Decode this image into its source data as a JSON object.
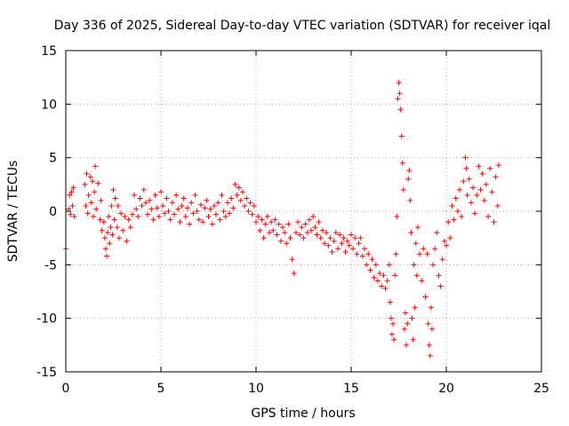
{
  "chart_data": {
    "type": "scatter",
    "title": "Day 336 of 2025, Sidereal Day-to-day VTEC variation (SDTVAR) for receiver iqal",
    "xlabel": "GPS time / hours",
    "ylabel": "SDTVAR / TECUs",
    "xlim": [
      0,
      25
    ],
    "ylim": [
      -15,
      15
    ],
    "xticks": [
      "0",
      "5",
      "10",
      "15",
      "20",
      "25"
    ],
    "yticks": [
      "-15",
      "-10",
      "-5",
      "0",
      "5",
      "10",
      "15"
    ],
    "grid": true,
    "marker": "+",
    "color": "#ff0000",
    "series": [
      {
        "name": "SDTVAR",
        "points": [
          [
            0.0,
            -3.5
          ],
          [
            0.15,
            0.2
          ],
          [
            0.2,
            1.5
          ],
          [
            0.25,
            -0.3
          ],
          [
            0.3,
            1.8
          ],
          [
            0.35,
            0.5
          ],
          [
            0.4,
            2.2
          ],
          [
            0.45,
            -0.5
          ],
          [
            1.0,
            2.5
          ],
          [
            1.05,
            0.5
          ],
          [
            1.1,
            3.5
          ],
          [
            1.15,
            -0.2
          ],
          [
            1.2,
            1.5
          ],
          [
            1.3,
            3.2
          ],
          [
            1.35,
            0.8
          ],
          [
            1.4,
            2.8
          ],
          [
            1.45,
            -0.5
          ],
          [
            1.5,
            1.8
          ],
          [
            1.55,
            4.2
          ],
          [
            1.6,
            0.2
          ],
          [
            1.7,
            2.6
          ],
          [
            1.8,
            -0.8
          ],
          [
            1.85,
            1.0
          ],
          [
            1.9,
            -1.8
          ],
          [
            2.0,
            -1.0
          ],
          [
            2.05,
            -2.5
          ],
          [
            2.1,
            -3.5
          ],
          [
            2.15,
            -4.2
          ],
          [
            2.2,
            -2.0
          ],
          [
            2.25,
            -0.5
          ],
          [
            2.3,
            -3.0
          ],
          [
            2.35,
            -1.5
          ],
          [
            2.4,
            0.5
          ],
          [
            2.45,
            -2.2
          ],
          [
            2.5,
            2.0
          ],
          [
            2.55,
            -0.8
          ],
          [
            2.6,
            1.2
          ],
          [
            2.7,
            -1.5
          ],
          [
            2.75,
            0.5
          ],
          [
            2.8,
            -2.5
          ],
          [
            2.9,
            -0.2
          ],
          [
            3.0,
            -1.8
          ],
          [
            3.1,
            -0.5
          ],
          [
            3.2,
            -2.8
          ],
          [
            3.3,
            -0.8
          ],
          [
            3.4,
            -1.5
          ],
          [
            3.5,
            -0.3
          ],
          [
            3.6,
            1.5
          ],
          [
            3.7,
            0.2
          ],
          [
            3.8,
            -0.5
          ],
          [
            3.9,
            1.2
          ],
          [
            4.0,
            0.5
          ],
          [
            4.1,
            2.0
          ],
          [
            4.2,
            0.8
          ],
          [
            4.3,
            -0.3
          ],
          [
            4.4,
            1.0
          ],
          [
            4.5,
            0.2
          ],
          [
            4.6,
            -0.8
          ],
          [
            4.7,
            1.5
          ],
          [
            4.8,
            0.3
          ],
          [
            4.9,
            -0.5
          ],
          [
            5.0,
            1.8
          ],
          [
            5.1,
            0.5
          ],
          [
            5.2,
            -0.2
          ],
          [
            5.3,
            1.2
          ],
          [
            5.4,
            0.0
          ],
          [
            5.5,
            -0.8
          ],
          [
            5.6,
            0.8
          ],
          [
            5.7,
            -0.3
          ],
          [
            5.8,
            1.5
          ],
          [
            5.9,
            0.2
          ],
          [
            6.0,
            -1.0
          ],
          [
            6.1,
            0.5
          ],
          [
            6.2,
            1.2
          ],
          [
            6.3,
            -0.5
          ],
          [
            6.4,
            0.3
          ],
          [
            6.5,
            -1.2
          ],
          [
            6.6,
            0.8
          ],
          [
            6.7,
            -0.2
          ],
          [
            6.8,
            1.5
          ],
          [
            6.9,
            0.0
          ],
          [
            7.0,
            -0.8
          ],
          [
            7.1,
            0.6
          ],
          [
            7.2,
            -1.0
          ],
          [
            7.3,
            0.3
          ],
          [
            7.4,
            1.0
          ],
          [
            7.5,
            -0.5
          ],
          [
            7.6,
            0.2
          ],
          [
            7.7,
            -1.2
          ],
          [
            7.8,
            0.5
          ],
          [
            7.9,
            -0.3
          ],
          [
            8.0,
            0.8
          ],
          [
            8.1,
            -0.8
          ],
          [
            8.2,
            1.5
          ],
          [
            8.3,
            0.0
          ],
          [
            8.4,
            -0.5
          ],
          [
            8.5,
            0.8
          ],
          [
            8.6,
            -0.2
          ],
          [
            8.7,
            1.2
          ],
          [
            8.8,
            0.3
          ],
          [
            8.9,
            2.5
          ],
          [
            9.0,
            1.5
          ],
          [
            9.1,
            2.2
          ],
          [
            9.2,
            1.0
          ],
          [
            9.3,
            1.8
          ],
          [
            9.4,
            0.5
          ],
          [
            9.5,
            1.2
          ],
          [
            9.6,
            0.0
          ],
          [
            9.7,
            0.8
          ],
          [
            9.8,
            -0.3
          ],
          [
            9.9,
            0.5
          ],
          [
            10.0,
            -1.0
          ],
          [
            10.1,
            -0.5
          ],
          [
            10.2,
            -1.8
          ],
          [
            10.3,
            -0.8
          ],
          [
            10.4,
            -2.5
          ],
          [
            10.5,
            -1.2
          ],
          [
            10.6,
            -0.5
          ],
          [
            10.7,
            -2.0
          ],
          [
            10.8,
            -1.0
          ],
          [
            10.9,
            -1.8
          ],
          [
            11.0,
            -0.8
          ],
          [
            11.1,
            -2.2
          ],
          [
            11.2,
            -1.2
          ],
          [
            11.3,
            -2.8
          ],
          [
            11.4,
            -1.5
          ],
          [
            11.5,
            -2.0
          ],
          [
            11.6,
            -3.0
          ],
          [
            11.7,
            -1.2
          ],
          [
            11.8,
            -2.5
          ],
          [
            11.9,
            -4.5
          ],
          [
            12.0,
            -5.8
          ],
          [
            12.1,
            -2.0
          ],
          [
            12.2,
            -1.0
          ],
          [
            12.3,
            -2.2
          ],
          [
            12.4,
            -1.5
          ],
          [
            12.5,
            -2.5
          ],
          [
            12.6,
            -1.2
          ],
          [
            12.7,
            -2.0
          ],
          [
            12.8,
            -0.8
          ],
          [
            12.9,
            -1.8
          ],
          [
            13.0,
            -0.5
          ],
          [
            13.1,
            -1.5
          ],
          [
            13.2,
            -2.2
          ],
          [
            13.3,
            -1.0
          ],
          [
            13.4,
            -2.5
          ],
          [
            13.5,
            -1.8
          ],
          [
            13.6,
            -3.0
          ],
          [
            13.7,
            -2.0
          ],
          [
            13.8,
            -3.2
          ],
          [
            13.9,
            -2.5
          ],
          [
            14.0,
            -3.8
          ],
          [
            14.1,
            -2.8
          ],
          [
            14.2,
            -2.0
          ],
          [
            14.3,
            -3.5
          ],
          [
            14.4,
            -2.2
          ],
          [
            14.5,
            -3.0
          ],
          [
            14.6,
            -2.5
          ],
          [
            14.7,
            -3.8
          ],
          [
            14.8,
            -2.8
          ],
          [
            14.9,
            -3.2
          ],
          [
            15.0,
            -2.2
          ],
          [
            15.1,
            -3.5
          ],
          [
            15.2,
            -2.5
          ],
          [
            15.3,
            -4.0
          ],
          [
            15.4,
            -3.0
          ],
          [
            15.5,
            -2.5
          ],
          [
            15.6,
            -4.2
          ],
          [
            15.7,
            -3.5
          ],
          [
            15.8,
            -5.0
          ],
          [
            15.9,
            -4.0
          ],
          [
            16.0,
            -5.5
          ],
          [
            16.1,
            -4.5
          ],
          [
            16.2,
            -6.2
          ],
          [
            16.3,
            -5.0
          ],
          [
            16.4,
            -6.5
          ],
          [
            16.5,
            -5.8
          ],
          [
            16.6,
            -7.0
          ],
          [
            16.7,
            -6.0
          ],
          [
            16.8,
            -7.2
          ],
          [
            16.9,
            -6.5
          ],
          [
            17.0,
            -5.0
          ],
          [
            17.05,
            -8.5
          ],
          [
            17.1,
            -10.0
          ],
          [
            17.15,
            -11.5
          ],
          [
            17.2,
            -10.5
          ],
          [
            17.25,
            -12.0
          ],
          [
            17.3,
            -6.0
          ],
          [
            17.35,
            -4.0
          ],
          [
            17.4,
            -0.5
          ],
          [
            17.45,
            10.5
          ],
          [
            17.5,
            12.0
          ],
          [
            17.55,
            11.0
          ],
          [
            17.6,
            9.5
          ],
          [
            17.65,
            7.0
          ],
          [
            17.7,
            4.5
          ],
          [
            17.75,
            2.0
          ],
          [
            17.8,
            -11.0
          ],
          [
            17.85,
            -9.5
          ],
          [
            17.9,
            -12.5
          ],
          [
            17.95,
            -10.5
          ],
          [
            18.0,
            3.0
          ],
          [
            18.05,
            3.8
          ],
          [
            18.1,
            1.0
          ],
          [
            18.15,
            -2.0
          ],
          [
            18.2,
            -10.0
          ],
          [
            18.25,
            -12.0
          ],
          [
            18.3,
            -5.0
          ],
          [
            18.35,
            -9.0
          ],
          [
            18.4,
            -3.0
          ],
          [
            18.45,
            -6.0
          ],
          [
            18.5,
            -1.5
          ],
          [
            18.6,
            -4.0
          ],
          [
            18.7,
            -6.5
          ],
          [
            18.8,
            -3.5
          ],
          [
            18.9,
            -8.0
          ],
          [
            19.0,
            -4.0
          ],
          [
            19.05,
            -10.5
          ],
          [
            19.1,
            -12.5
          ],
          [
            19.15,
            -13.5
          ],
          [
            19.2,
            -9.0
          ],
          [
            19.25,
            -11.0
          ],
          [
            19.3,
            -5.0
          ],
          [
            19.4,
            -3.5
          ],
          [
            19.5,
            -2.0
          ],
          [
            19.6,
            -6.0
          ],
          [
            19.7,
            -7.0
          ],
          [
            19.8,
            -4.5
          ],
          [
            19.9,
            -2.8
          ],
          [
            20.0,
            -3.2
          ],
          [
            20.1,
            -1.0
          ],
          [
            20.2,
            -2.5
          ],
          [
            20.3,
            0.5
          ],
          [
            20.4,
            -0.8
          ],
          [
            20.5,
            1.2
          ],
          [
            20.6,
            0.0
          ],
          [
            20.7,
            2.0
          ],
          [
            20.8,
            -0.5
          ],
          [
            20.9,
            2.8
          ],
          [
            21.0,
            5.0
          ],
          [
            21.05,
            4.0
          ],
          [
            21.1,
            1.5
          ],
          [
            21.2,
            3.0
          ],
          [
            21.3,
            0.8
          ],
          [
            21.4,
            2.2
          ],
          [
            21.5,
            -0.2
          ],
          [
            21.6,
            1.5
          ],
          [
            21.7,
            4.2
          ],
          [
            21.8,
            2.0
          ],
          [
            21.9,
            3.5
          ],
          [
            22.0,
            1.0
          ],
          [
            22.1,
            2.5
          ],
          [
            22.2,
            -0.5
          ],
          [
            22.3,
            4.0
          ],
          [
            22.4,
            1.8
          ],
          [
            22.5,
            -1.0
          ],
          [
            22.6,
            3.2
          ],
          [
            22.7,
            0.5
          ],
          [
            22.75,
            4.3
          ]
        ]
      }
    ]
  }
}
